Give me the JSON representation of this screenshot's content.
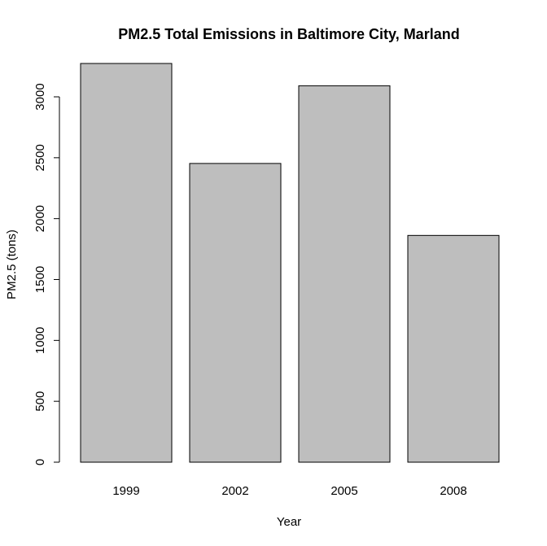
{
  "chart_data": {
    "type": "bar",
    "title": "PM2.5 Total Emissions in Baltimore City, Marland",
    "xlabel": "Year",
    "ylabel": "PM2.5 (tons)",
    "categories": [
      "1999",
      "2002",
      "2005",
      "2008"
    ],
    "values": [
      3274,
      2453,
      3091,
      1862
    ],
    "ylim": [
      0,
      3274
    ],
    "yticks": [
      0,
      500,
      1000,
      1500,
      2000,
      2500,
      3000
    ],
    "bar_color": "#bebebe",
    "grid": false,
    "legend": "none"
  }
}
